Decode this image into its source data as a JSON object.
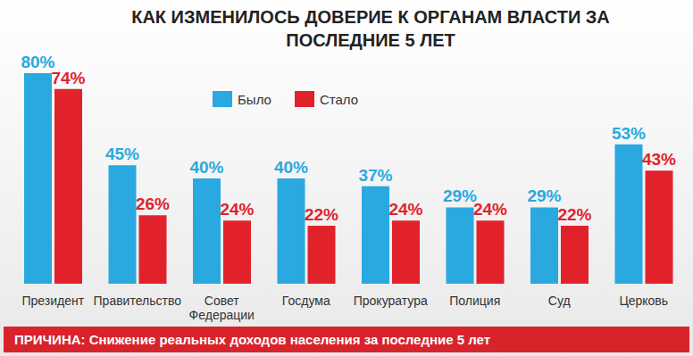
{
  "chart_data": {
    "type": "bar",
    "title": "КАК ИЗМЕНИЛОСЬ ДОВЕРИЕ К ОРГАНАМ ВЛАСТИ ЗА ПОСЛЕДНИЕ 5 ЛЕТ",
    "annotation": "ПРИЧИНА: Снижение реальных доходов населения за последние 5 лет",
    "categories": [
      "Президент",
      "Правительство",
      "Совет Федерации",
      "Госдума",
      "Прокуратура",
      "Полиция",
      "Суд",
      "Церковь"
    ],
    "series": [
      {
        "name": "Было",
        "color": "#29a9e0",
        "values": [
          80,
          45,
          40,
          40,
          37,
          29,
          29,
          53
        ],
        "value_labels": [
          "80%",
          "45%",
          "40%",
          "40%",
          "37%",
          "29%",
          "29%",
          "53%"
        ]
      },
      {
        "name": "Стало",
        "color": "#e2222b",
        "values": [
          74,
          26,
          24,
          22,
          24,
          24,
          22,
          43
        ],
        "value_labels": [
          "74%",
          "26%",
          "24%",
          "22%",
          "24%",
          "24%",
          "22%",
          "43%"
        ]
      }
    ],
    "data_labels": true,
    "legend": "top",
    "grid": false,
    "tick_labels": "x"
  }
}
